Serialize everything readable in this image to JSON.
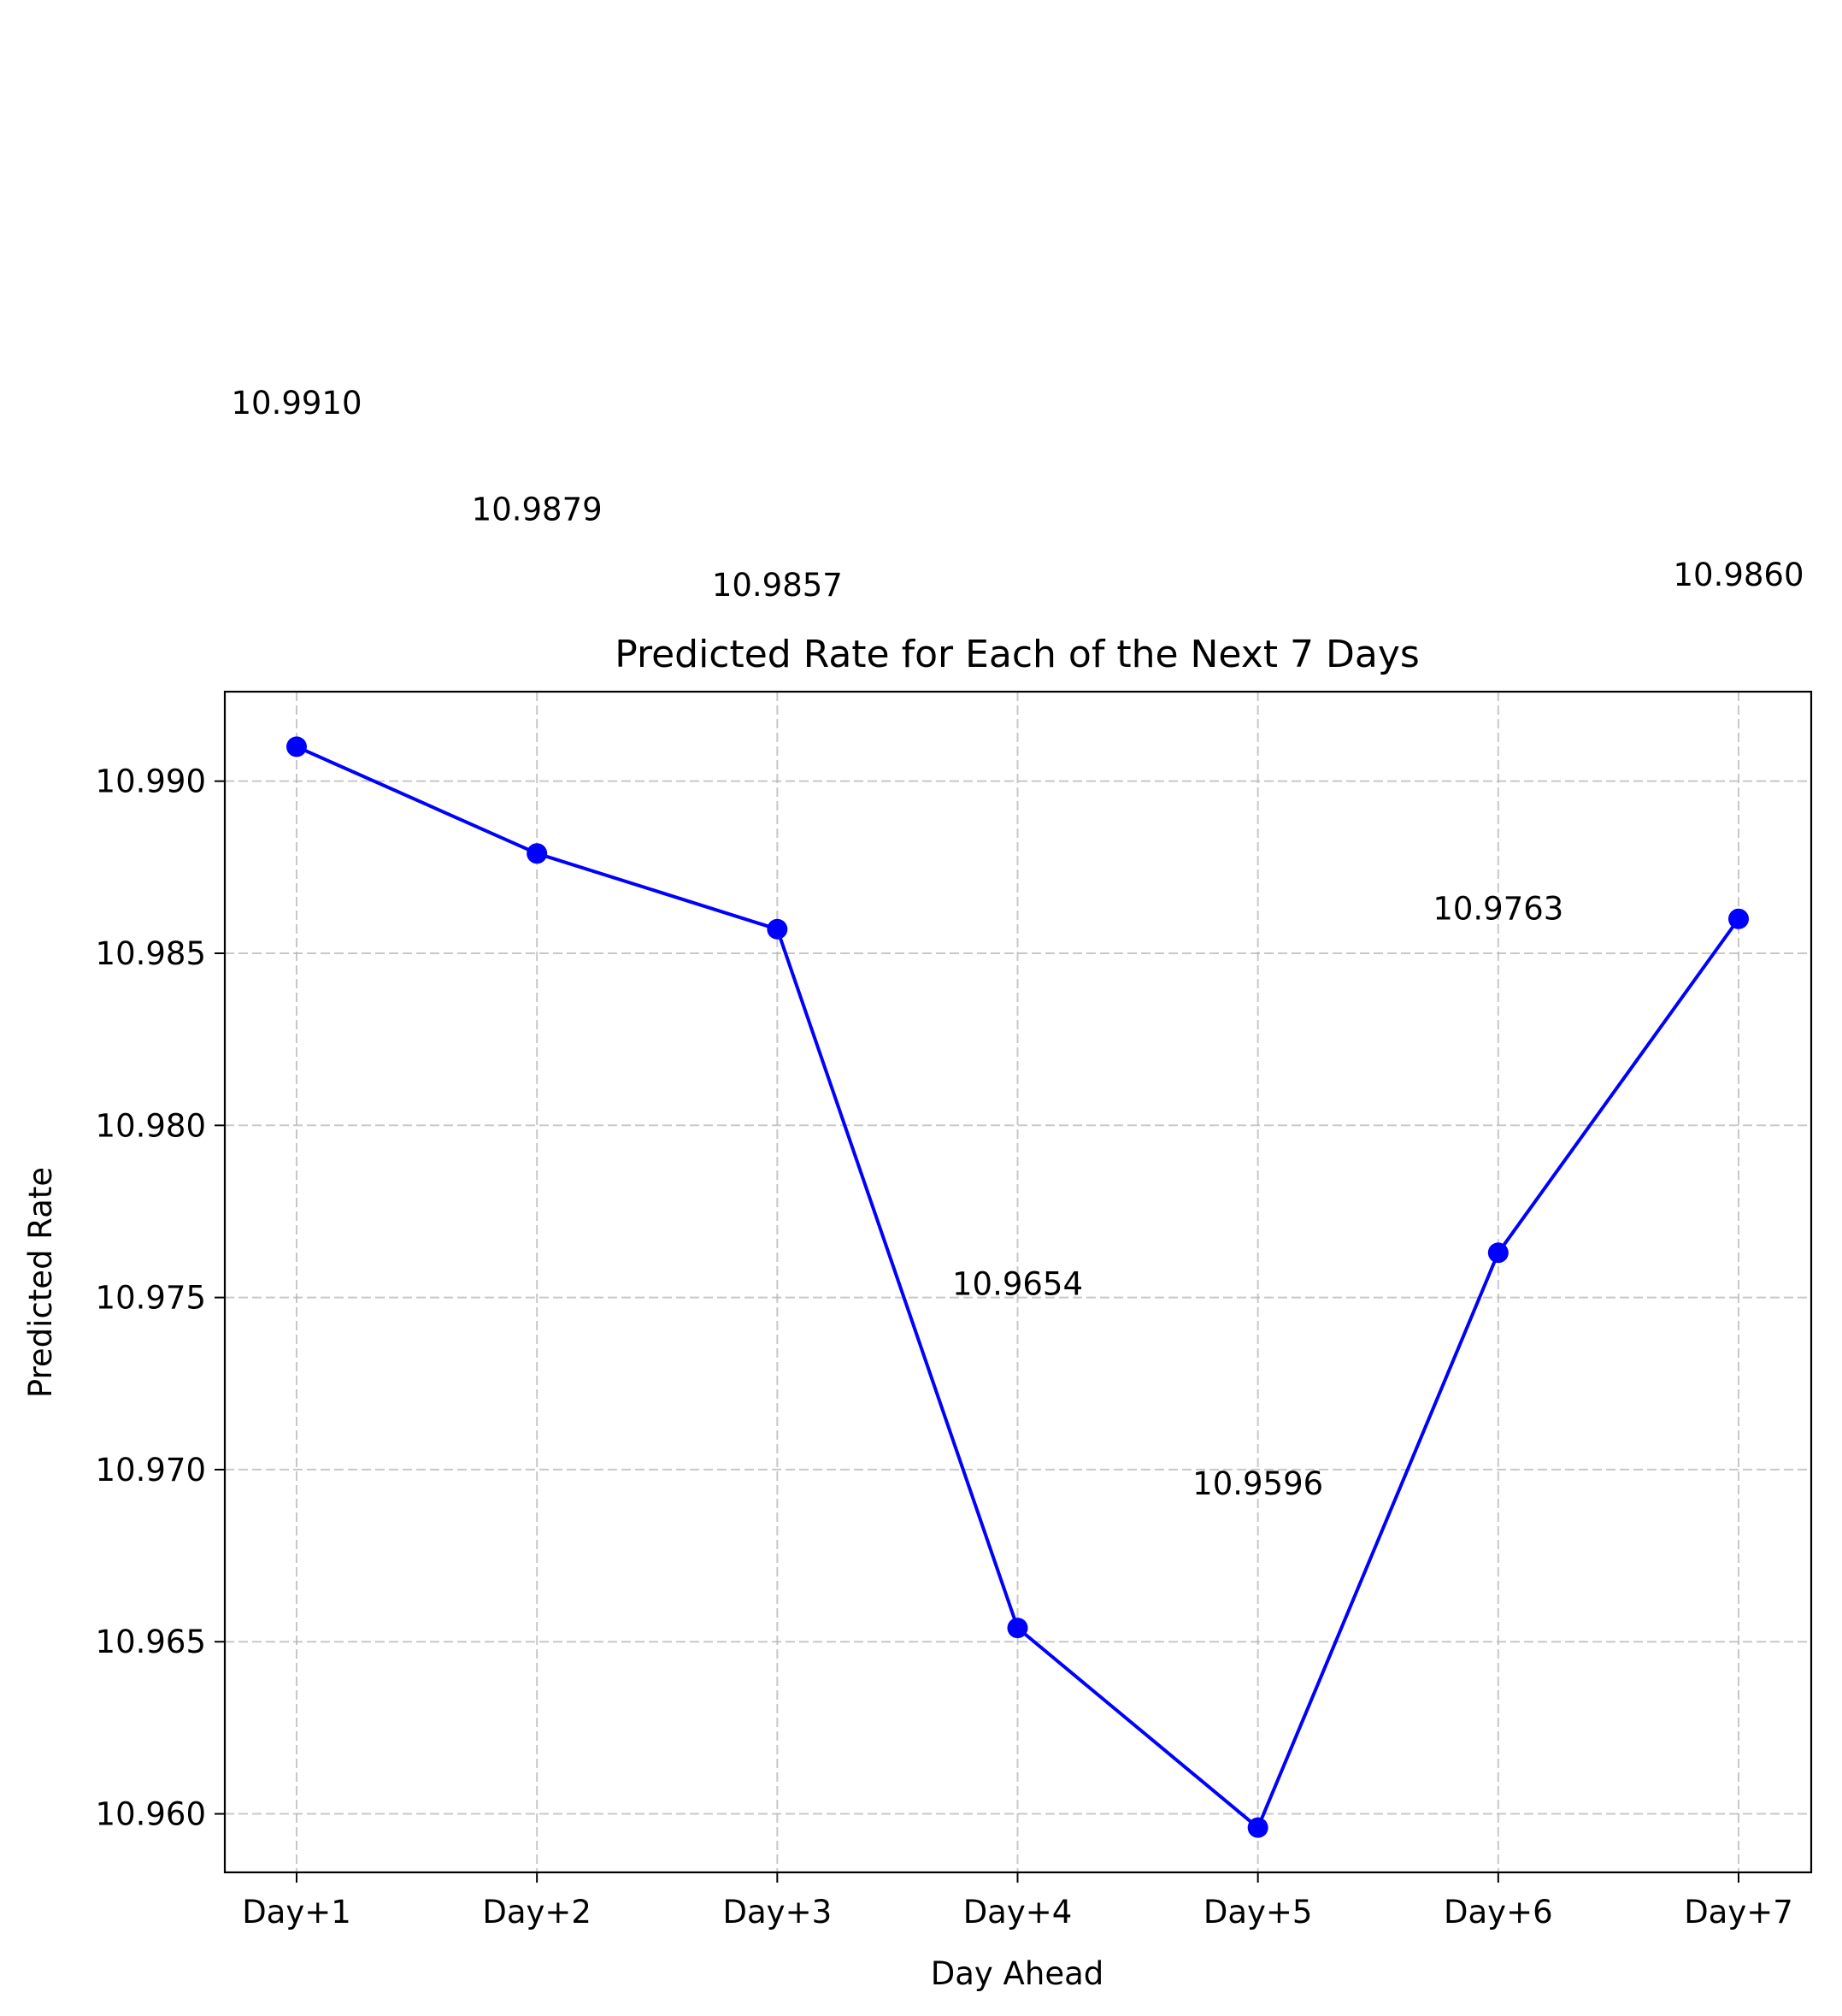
{
  "chart_data": {
    "type": "line",
    "title": "Predicted Rate for Each of the Next 7 Days",
    "xlabel": "Day Ahead",
    "ylabel": "Predicted Rate",
    "categories": [
      "Day+1",
      "Day+2",
      "Day+3",
      "Day+4",
      "Day+5",
      "Day+6",
      "Day+7"
    ],
    "series": [
      {
        "values": [
          10.991,
          10.9879,
          10.9857,
          10.9654,
          10.9596,
          10.9763,
          10.986
        ],
        "color": "#0000ff",
        "marker": "circle"
      }
    ],
    "data_labels": [
      "10.9910",
      "10.9879",
      "10.9857",
      "10.9654",
      "10.9596",
      "10.9763",
      "10.9860"
    ],
    "ylim": [
      10.9583,
      10.9926
    ],
    "yticks": [
      10.96,
      10.965,
      10.97,
      10.975,
      10.98,
      10.985,
      10.99
    ],
    "ytick_labels": [
      "10.960",
      "10.965",
      "10.970",
      "10.975",
      "10.980",
      "10.985",
      "10.990"
    ],
    "grid": true,
    "grid_style": "dashed"
  }
}
